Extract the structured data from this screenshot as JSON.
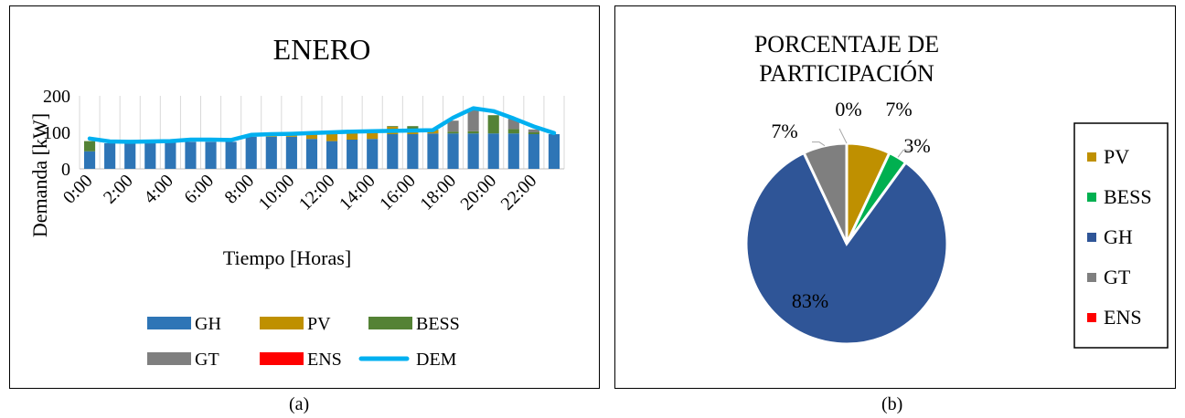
{
  "chart_data": [
    {
      "type": "bar",
      "stacked": true,
      "title": "ENERO",
      "xlabel": "Tiempo [Horas]",
      "ylabel": "Demanda [kW]",
      "ylim": [
        0,
        200
      ],
      "yticks": [
        0,
        100,
        200
      ],
      "grid": "vertical",
      "legend_placement": "bottom",
      "categories": [
        "0:00",
        "1:00",
        "2:00",
        "3:00",
        "4:00",
        "5:00",
        "6:00",
        "7:00",
        "8:00",
        "9:00",
        "10:00",
        "11:00",
        "12:00",
        "13:00",
        "14:00",
        "15:00",
        "16:00",
        "17:00",
        "18:00",
        "19:00",
        "20:00",
        "21:00",
        "22:00",
        "23:00"
      ],
      "x_tick_labels": [
        "0:00",
        "",
        "2:00",
        "",
        "4:00",
        "",
        "6:00",
        "",
        "8:00",
        "",
        "10:00",
        "",
        "12:00",
        "",
        "14:00",
        "",
        "16:00",
        "",
        "18:00",
        "",
        "20:00",
        "",
        "22:00",
        ""
      ],
      "series": [
        {
          "name": "GH",
          "kind": "bar",
          "color": "#2e75b6",
          "values": [
            48,
            70,
            70,
            70,
            72,
            74,
            74,
            74,
            88,
            88,
            88,
            82,
            76,
            80,
            82,
            95,
            95,
            97,
            97,
            97,
            97,
            97,
            95,
            95
          ]
        },
        {
          "name": "PV",
          "kind": "bar",
          "color": "#bf9000",
          "values": [
            0,
            0,
            0,
            0,
            0,
            0,
            0,
            0,
            0,
            2,
            6,
            12,
            22,
            18,
            20,
            20,
            14,
            8,
            0,
            0,
            0,
            0,
            0,
            0
          ]
        },
        {
          "name": "BESS",
          "kind": "bar",
          "color": "#548235",
          "values": [
            28,
            0,
            0,
            0,
            0,
            0,
            0,
            0,
            0,
            0,
            0,
            0,
            0,
            0,
            0,
            2,
            8,
            2,
            5,
            6,
            50,
            12,
            5,
            0
          ]
        },
        {
          "name": "GT",
          "kind": "bar",
          "color": "#7f7f7f",
          "values": [
            0,
            0,
            0,
            0,
            0,
            0,
            0,
            0,
            0,
            0,
            0,
            0,
            0,
            0,
            0,
            0,
            0,
            0,
            30,
            62,
            0,
            28,
            8,
            0
          ]
        },
        {
          "name": "ENS",
          "kind": "bar",
          "color": "#ff0000",
          "values": [
            0,
            0,
            0,
            0,
            0,
            0,
            0,
            0,
            0,
            0,
            0,
            0,
            0,
            0,
            0,
            0,
            0,
            0,
            0,
            0,
            0,
            0,
            0,
            0
          ]
        },
        {
          "name": "DEM",
          "kind": "line",
          "color": "#00b0f0",
          "values": [
            83,
            75,
            74,
            75,
            76,
            80,
            80,
            79,
            93,
            95,
            96,
            98,
            100,
            102,
            103,
            104,
            105,
            106,
            140,
            166,
            158,
            138,
            116,
            98
          ]
        }
      ]
    },
    {
      "type": "pie",
      "title": "PORCENTAJE DE PARTICIPACIÓN",
      "legend_placement": "right",
      "slices": [
        {
          "name": "PV",
          "value": 7,
          "label": "7%",
          "color": "#bf9000"
        },
        {
          "name": "BESS",
          "value": 3,
          "label": "3%",
          "color": "#00b050"
        },
        {
          "name": "GH",
          "value": 83,
          "label": "83%",
          "color": "#2f5597"
        },
        {
          "name": "GT",
          "value": 7,
          "label": "7%",
          "color": "#7f7f7f"
        },
        {
          "name": "ENS",
          "value": 0,
          "label": "0%",
          "color": "#ff0000"
        }
      ]
    }
  ],
  "captions": {
    "a": "(a)",
    "b": "(b)"
  }
}
